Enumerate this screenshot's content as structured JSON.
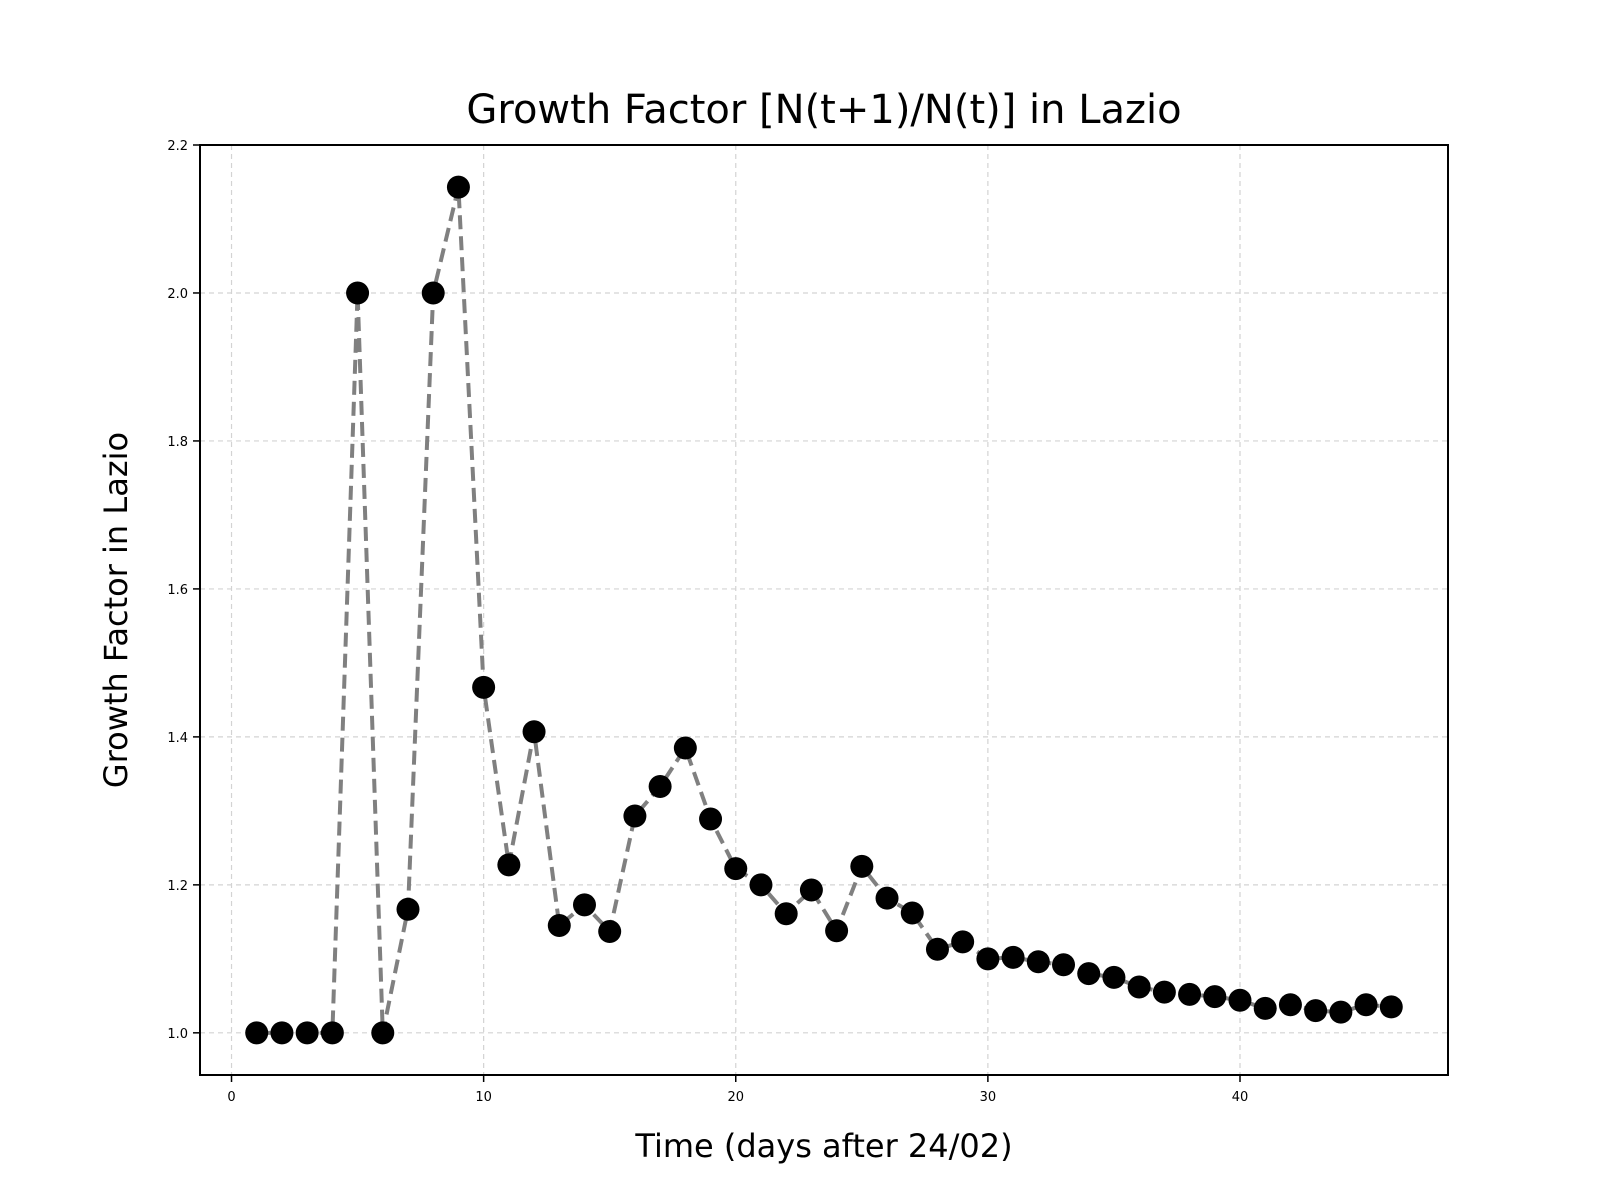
{
  "chart_data": {
    "type": "line",
    "title": "Growth Factor [N(t+1)/N(t)] in Lazio",
    "xlabel": "Time (days after 24/02)",
    "ylabel": "Growth Factor in Lazio",
    "xlim": [
      -1.25,
      48.25
    ],
    "ylim": [
      0.943,
      2.2
    ],
    "xticks": [
      0,
      10,
      20,
      30,
      40
    ],
    "xtick_labels": [
      "0",
      "10",
      "20",
      "30",
      "40"
    ],
    "yticks": [
      1.0,
      1.2,
      1.4,
      1.6,
      1.8,
      2.0,
      2.2
    ],
    "ytick_labels": [
      "1.0",
      "1.2",
      "1.4",
      "1.6",
      "1.8",
      "2.0",
      "2.2"
    ],
    "grid": true,
    "line_style": "dashed",
    "line_color": "#808080",
    "marker_color": "#000000",
    "x": [
      1,
      2,
      3,
      4,
      5,
      6,
      7,
      8,
      9,
      10,
      11,
      12,
      13,
      14,
      15,
      16,
      17,
      18,
      19,
      20,
      21,
      22,
      23,
      24,
      25,
      26,
      27,
      28,
      29,
      30,
      31,
      32,
      33,
      34,
      35,
      36,
      37,
      38,
      39,
      40,
      41,
      42,
      43,
      44,
      45,
      46
    ],
    "series": [
      {
        "values": [
          1.0,
          1.0,
          1.0,
          1.0,
          2.0,
          1.0,
          1.167,
          2.0,
          2.143,
          1.467,
          1.227,
          1.407,
          1.145,
          1.173,
          1.137,
          1.293,
          1.333,
          1.385,
          1.289,
          1.222,
          1.2,
          1.161,
          1.193,
          1.138,
          1.225,
          1.182,
          1.162,
          1.113,
          1.123,
          1.1,
          1.102,
          1.096,
          1.092,
          1.08,
          1.075,
          1.062,
          1.055,
          1.052,
          1.049,
          1.044,
          1.033,
          1.038,
          1.03,
          1.028,
          1.038,
          1.035
        ]
      }
    ]
  }
}
